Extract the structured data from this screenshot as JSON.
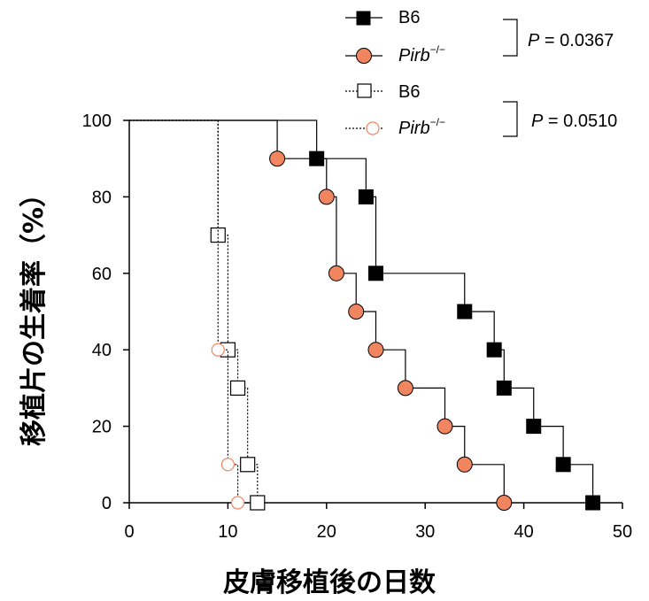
{
  "chart_data": {
    "type": "line",
    "subtype": "kaplan-meier-step",
    "xlabel": "皮膚移植後の日数",
    "ylabel": "移植片の生着率（%）",
    "xlim": [
      0,
      50
    ],
    "ylim": [
      0,
      100
    ],
    "xticks": [
      0,
      10,
      20,
      30,
      40,
      50
    ],
    "yticks": [
      0,
      20,
      40,
      60,
      80,
      100
    ],
    "grid": false,
    "legend_position": "top-right",
    "series": [
      {
        "name": "B6",
        "style": "solid",
        "marker": "square-filled",
        "color": "#000000",
        "steps": [
          [
            0,
            100
          ],
          [
            19,
            90
          ],
          [
            24,
            80
          ],
          [
            25,
            60
          ],
          [
            34,
            50
          ],
          [
            37,
            40
          ],
          [
            38,
            30
          ],
          [
            41,
            20
          ],
          [
            44,
            10
          ],
          [
            47,
            0
          ]
        ],
        "markers": [
          [
            19,
            90
          ],
          [
            24,
            80
          ],
          [
            25,
            60
          ],
          [
            34,
            50
          ],
          [
            37,
            40
          ],
          [
            38,
            30
          ],
          [
            41,
            20
          ],
          [
            44,
            10
          ],
          [
            47,
            0
          ]
        ]
      },
      {
        "name": "Pirb−/−",
        "style": "solid",
        "marker": "circle-filled",
        "color": "#f08560",
        "steps": [
          [
            0,
            100
          ],
          [
            15,
            90
          ],
          [
            20,
            80
          ],
          [
            21,
            60
          ],
          [
            23,
            50
          ],
          [
            25,
            40
          ],
          [
            28,
            30
          ],
          [
            32,
            20
          ],
          [
            34,
            10
          ],
          [
            38,
            0
          ]
        ],
        "markers": [
          [
            15,
            90
          ],
          [
            20,
            80
          ],
          [
            21,
            60
          ],
          [
            23,
            50
          ],
          [
            25,
            40
          ],
          [
            28,
            30
          ],
          [
            32,
            20
          ],
          [
            34,
            10
          ],
          [
            38,
            0
          ]
        ]
      },
      {
        "name": "B6",
        "style": "dotted",
        "marker": "square-open",
        "color": "#000000",
        "steps": [
          [
            0,
            100
          ],
          [
            9,
            70
          ],
          [
            10,
            40
          ],
          [
            11,
            30
          ],
          [
            12,
            10
          ],
          [
            13,
            0
          ]
        ],
        "markers": [
          [
            9,
            70
          ],
          [
            10,
            40
          ],
          [
            11,
            30
          ],
          [
            12,
            10
          ],
          [
            13,
            0
          ]
        ]
      },
      {
        "name": "Pirb−/−",
        "style": "dotted",
        "marker": "circle-open",
        "color": "#f08560",
        "steps": [
          [
            0,
            100
          ],
          [
            9,
            40
          ],
          [
            10,
            10
          ],
          [
            11,
            0
          ]
        ],
        "markers": [
          [
            9,
            40
          ],
          [
            10,
            10
          ],
          [
            11,
            0
          ]
        ]
      }
    ],
    "annotations": [
      {
        "text": "P = 0.0367",
        "groups": [
          0,
          1
        ]
      },
      {
        "text": "P = 0.0510",
        "groups": [
          2,
          3
        ]
      }
    ]
  },
  "legend": {
    "items": [
      {
        "main": "B6",
        "sup": ""
      },
      {
        "main": "Pirb",
        "sup": "−/−"
      },
      {
        "main": "B6",
        "sup": ""
      },
      {
        "main": "Pirb",
        "sup": "−/−"
      }
    ],
    "pvalues": [
      {
        "label": "P",
        "value": " = 0.0367"
      },
      {
        "label": "P",
        "value": " = 0.0510"
      }
    ]
  }
}
